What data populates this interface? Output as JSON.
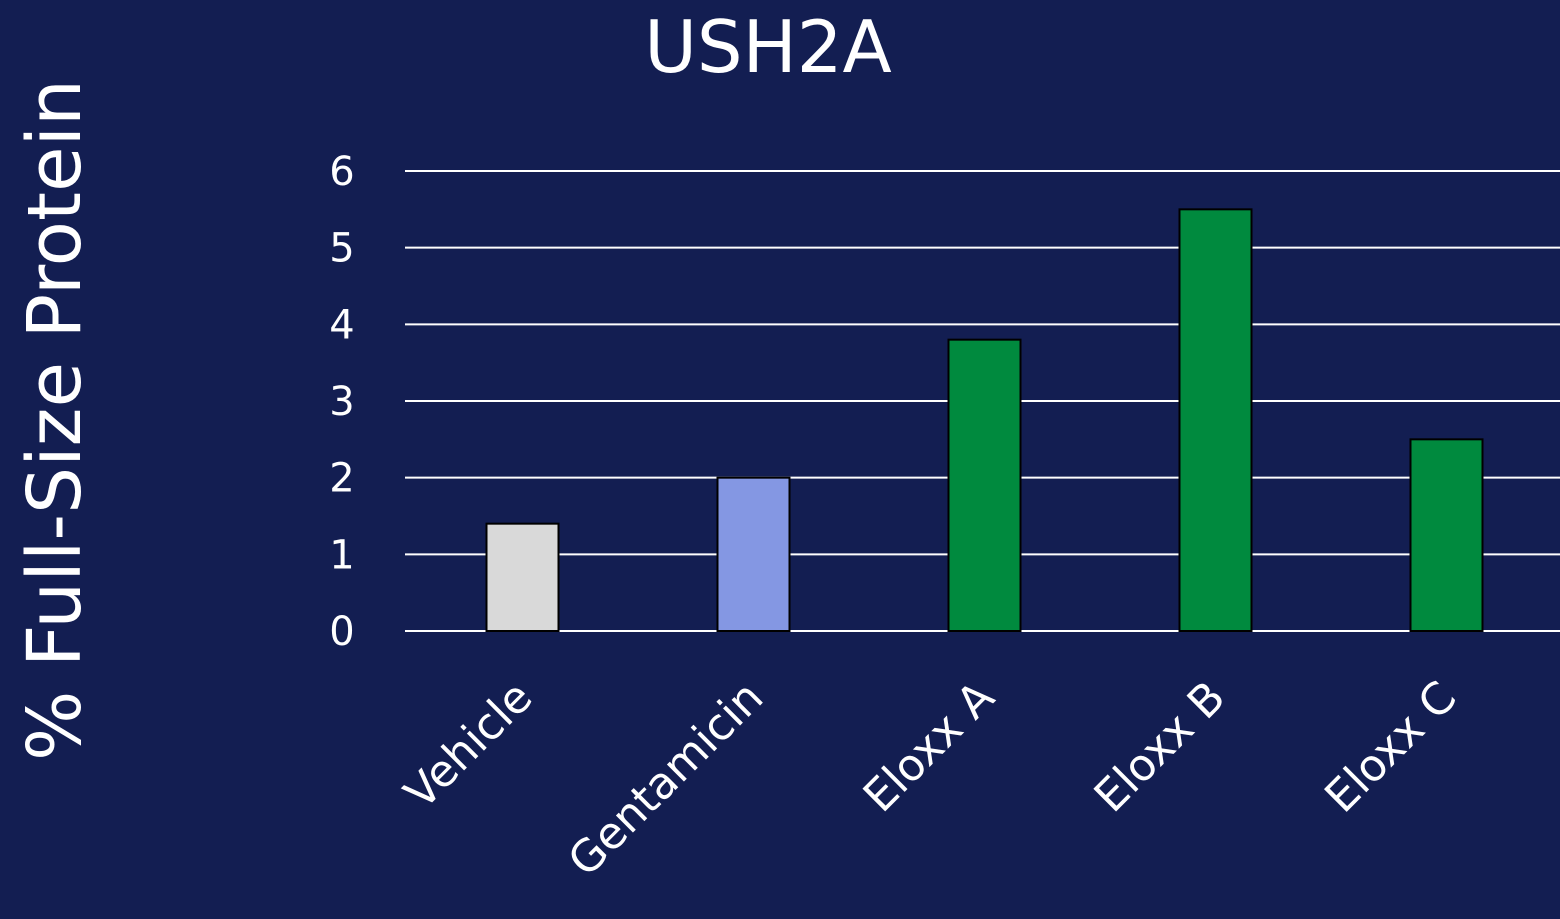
{
  "chart_data": {
    "type": "bar",
    "title": "USH2A",
    "y_label": "% Full-Size Protein",
    "categories": [
      "Vehicle",
      "Gentamicin",
      "Eloxx A",
      "Eloxx B",
      "Eloxx C"
    ],
    "values": [
      1.4,
      2.0,
      3.8,
      5.5,
      2.5
    ],
    "colors": [
      "#d9d9d9",
      "#8497e3",
      "#008a3e",
      "#008a3e",
      "#008a3e"
    ],
    "ylim": [
      0,
      6
    ],
    "yticks": [
      0,
      1,
      2,
      3,
      4,
      5,
      6
    ],
    "grid": true
  }
}
